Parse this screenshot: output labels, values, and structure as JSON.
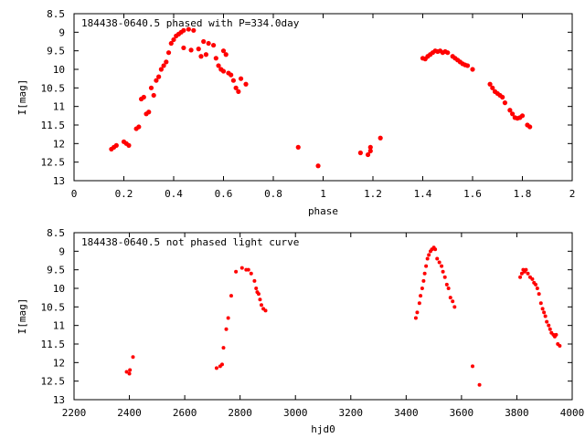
{
  "chart_data": [
    {
      "type": "scatter",
      "title": "184438-0640.5 phased with P=334.0day",
      "xlabel": "phase",
      "ylabel": "I[mag]",
      "xlim": [
        0,
        2
      ],
      "ylim": [
        8.5,
        13
      ],
      "y_inverted": true,
      "xticks": [
        "0",
        "0.2",
        "0.4",
        "0.6",
        "0.8",
        "1",
        "1.2",
        "1.4",
        "1.6",
        "1.8",
        "2"
      ],
      "yticks": [
        "8.5",
        "9",
        "9.5",
        "10",
        "10.5",
        "11",
        "11.5",
        "12",
        "12.5",
        "13"
      ],
      "grid": false,
      "legend": "none",
      "marker_color": "#ff0000",
      "series": [
        {
          "x": [
            0.15,
            0.16,
            0.17,
            0.2,
            0.21,
            0.22,
            0.25,
            0.26,
            0.27,
            0.28,
            0.29,
            0.3,
            0.31,
            0.32,
            0.33,
            0.34,
            0.35,
            0.36,
            0.37,
            0.38,
            0.39,
            0.4,
            0.41,
            0.42,
            0.43,
            0.44,
            0.46,
            0.48,
            0.5,
            0.52,
            0.44,
            0.47,
            0.51,
            0.53,
            0.54,
            0.56,
            0.57,
            0.58,
            0.59,
            0.6,
            0.6,
            0.61,
            0.62,
            0.63,
            0.64,
            0.65,
            0.66,
            0.67,
            0.69,
            0.9,
            0.98,
            1.15,
            1.18,
            1.19,
            1.19,
            1.23,
            1.4,
            1.41,
            1.42,
            1.43,
            1.44,
            1.45,
            1.46,
            1.47,
            1.48,
            1.49,
            1.5,
            1.52,
            1.53,
            1.54,
            1.55,
            1.56,
            1.57,
            1.58,
            1.6,
            1.67,
            1.68,
            1.69,
            1.7,
            1.71,
            1.72,
            1.73,
            1.75,
            1.76,
            1.77,
            1.78,
            1.79,
            1.8,
            1.82,
            1.83
          ],
          "y": [
            12.15,
            12.1,
            12.05,
            11.95,
            12.0,
            12.05,
            11.6,
            11.55,
            10.8,
            10.75,
            11.2,
            11.15,
            10.5,
            10.7,
            10.3,
            10.2,
            10.0,
            9.9,
            9.8,
            9.55,
            9.3,
            9.2,
            9.1,
            9.05,
            9.0,
            8.95,
            8.92,
            8.95,
            9.45,
            9.25,
            9.42,
            9.48,
            9.65,
            9.6,
            9.3,
            9.35,
            9.7,
            9.9,
            10.0,
            10.05,
            9.5,
            9.6,
            10.1,
            10.15,
            10.3,
            10.5,
            10.6,
            10.25,
            10.4,
            12.1,
            12.6,
            12.25,
            12.3,
            12.2,
            12.1,
            11.85,
            9.7,
            9.72,
            9.65,
            9.6,
            9.55,
            9.5,
            9.52,
            9.5,
            9.55,
            9.52,
            9.55,
            9.65,
            9.7,
            9.75,
            9.8,
            9.85,
            9.88,
            9.9,
            10.0,
            10.4,
            10.5,
            10.6,
            10.65,
            10.7,
            10.75,
            10.9,
            11.1,
            11.2,
            11.3,
            11.32,
            11.3,
            11.25,
            11.5,
            11.55
          ]
        }
      ]
    },
    {
      "type": "scatter",
      "title": "184438-0640.5 not phased light curve",
      "xlabel": "hjd0",
      "ylabel": "I[mag]",
      "xlim": [
        2200,
        4000
      ],
      "ylim": [
        8.5,
        13
      ],
      "y_inverted": true,
      "xticks": [
        "2200",
        "2400",
        "2600",
        "2800",
        "3000",
        "3200",
        "3400",
        "3600",
        "3800",
        "4000"
      ],
      "yticks": [
        "8.5",
        "9",
        "9.5",
        "10",
        "10.5",
        "11",
        "11.5",
        "12",
        "12.5",
        "13"
      ],
      "grid": false,
      "legend": "none",
      "marker_color": "#ff0000",
      "series": [
        {
          "x": [
            2390,
            2400,
            2402,
            2413,
            2715,
            2728,
            2735,
            2740,
            2750,
            2757,
            2768,
            2785,
            2807,
            2822,
            2830,
            2840,
            2852,
            2858,
            2862,
            2867,
            2872,
            2877,
            2884,
            2892,
            3435,
            3440,
            3448,
            3452,
            3458,
            3463,
            3467,
            3472,
            3477,
            3482,
            3488,
            3493,
            3500,
            3505,
            3512,
            3520,
            3528,
            3533,
            3540,
            3547,
            3553,
            3560,
            3568,
            3575,
            3640,
            3665,
            3812,
            3818,
            3823,
            3828,
            3833,
            3840,
            3848,
            3856,
            3862,
            3868,
            3874,
            3880,
            3887,
            3893,
            3898,
            3903,
            3908,
            3915,
            3920,
            3925,
            3932,
            3937,
            3942,
            3948,
            3955
          ],
          "y": [
            12.25,
            12.3,
            12.2,
            11.85,
            12.15,
            12.1,
            12.05,
            11.6,
            11.1,
            10.8,
            10.2,
            9.55,
            9.45,
            9.5,
            9.5,
            9.6,
            9.8,
            10.0,
            10.1,
            10.15,
            10.3,
            10.45,
            10.55,
            10.6,
            10.8,
            10.65,
            10.4,
            10.2,
            10.0,
            9.8,
            9.6,
            9.4,
            9.2,
            9.1,
            9.0,
            8.95,
            8.9,
            8.95,
            9.2,
            9.3,
            9.4,
            9.55,
            9.7,
            9.9,
            10.0,
            10.25,
            10.35,
            10.5,
            12.1,
            12.6,
            9.7,
            9.6,
            9.5,
            9.55,
            9.5,
            9.6,
            9.7,
            9.75,
            9.85,
            9.9,
            10.0,
            10.15,
            10.4,
            10.55,
            10.65,
            10.75,
            10.9,
            11.0,
            11.1,
            11.2,
            11.25,
            11.3,
            11.25,
            11.5,
            11.55
          ]
        }
      ]
    }
  ]
}
